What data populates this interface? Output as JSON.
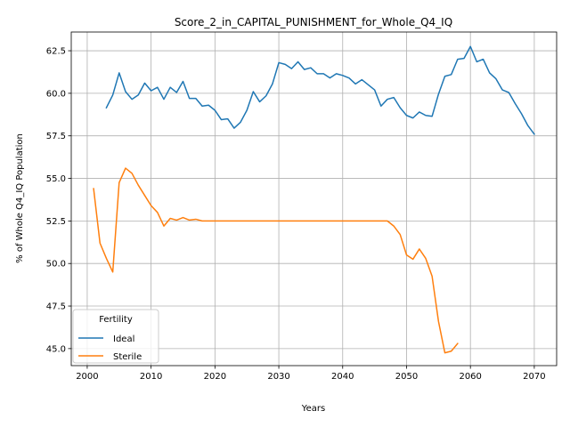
{
  "chart_data": {
    "type": "line",
    "title": "Score_2_in_CAPITAL_PUNISHMENT_for_Whole_Q4_IQ",
    "xlabel": "Years",
    "ylabel": "% of Whole Q4_IQ Population",
    "xlim": [
      1997.5,
      2073.5
    ],
    "ylim": [
      44.0,
      63.6
    ],
    "xticks": [
      2000,
      2010,
      2020,
      2030,
      2040,
      2050,
      2060,
      2070
    ],
    "yticks": [
      45.0,
      47.5,
      50.0,
      52.5,
      55.0,
      57.5,
      60.0,
      62.5
    ],
    "grid": true,
    "legend": {
      "title": "Fertility",
      "placement": "lower-left"
    },
    "series": [
      {
        "name": "Ideal",
        "color": "#1f77b4",
        "x": [
          2003,
          2004,
          2005,
          2006,
          2007,
          2008,
          2009,
          2010,
          2011,
          2012,
          2013,
          2014,
          2015,
          2016,
          2017,
          2018,
          2019,
          2020,
          2021,
          2022,
          2023,
          2024,
          2025,
          2026,
          2027,
          2028,
          2029,
          2030,
          2031,
          2032,
          2033,
          2034,
          2035,
          2036,
          2037,
          2038,
          2039,
          2040,
          2041,
          2042,
          2043,
          2044,
          2045,
          2046,
          2047,
          2048,
          2049,
          2050,
          2051,
          2052,
          2053,
          2054,
          2055,
          2056,
          2057,
          2058,
          2059,
          2060,
          2061,
          2062,
          2063,
          2064,
          2065,
          2066,
          2067,
          2068,
          2069,
          2070
        ],
        "y": [
          59.15,
          59.9,
          61.2,
          60.1,
          59.65,
          59.9,
          60.6,
          60.15,
          60.35,
          59.65,
          60.35,
          60.05,
          60.7,
          59.7,
          59.7,
          59.25,
          59.3,
          59.0,
          58.45,
          58.5,
          57.95,
          58.3,
          59.0,
          60.1,
          59.5,
          59.85,
          60.55,
          61.8,
          61.7,
          61.45,
          61.85,
          61.4,
          61.5,
          61.15,
          61.15,
          60.9,
          61.15,
          61.05,
          60.9,
          60.55,
          60.8,
          60.5,
          60.2,
          59.25,
          59.65,
          59.75,
          59.15,
          58.7,
          58.55,
          58.9,
          58.7,
          58.65,
          59.95,
          61.0,
          61.1,
          62.0,
          62.05,
          62.75,
          61.85,
          62.0,
          61.2,
          60.85,
          60.2,
          60.05,
          59.4,
          58.8,
          58.1,
          57.6
        ]
      },
      {
        "name": "Sterile",
        "color": "#ff7f0e",
        "x": [
          2001,
          2002,
          2003,
          2004,
          2005,
          2006,
          2007,
          2008,
          2009,
          2010,
          2011,
          2012,
          2013,
          2014,
          2015,
          2016,
          2017,
          2018,
          2019,
          2020,
          2021,
          2022,
          2023,
          2024,
          2025,
          2026,
          2027,
          2028,
          2029,
          2030,
          2031,
          2032,
          2033,
          2034,
          2035,
          2036,
          2037,
          2038,
          2039,
          2040,
          2041,
          2042,
          2043,
          2044,
          2045,
          2046,
          2047,
          2048,
          2049,
          2050,
          2051,
          2052,
          2053,
          2054,
          2055,
          2056,
          2057,
          2058
        ],
        "y": [
          54.4,
          51.2,
          50.3,
          49.5,
          54.75,
          55.6,
          55.3,
          54.6,
          54.0,
          53.4,
          53.0,
          52.2,
          52.65,
          52.55,
          52.7,
          52.55,
          52.6,
          52.5,
          52.5,
          52.5,
          52.5,
          52.5,
          52.5,
          52.5,
          52.5,
          52.5,
          52.5,
          52.5,
          52.5,
          52.5,
          52.5,
          52.5,
          52.5,
          52.5,
          52.5,
          52.5,
          52.5,
          52.5,
          52.5,
          52.5,
          52.5,
          52.5,
          52.5,
          52.5,
          52.5,
          52.5,
          52.5,
          52.2,
          51.7,
          50.5,
          50.25,
          50.85,
          50.3,
          49.25,
          46.6,
          44.75,
          44.85,
          45.3
        ]
      }
    ]
  }
}
